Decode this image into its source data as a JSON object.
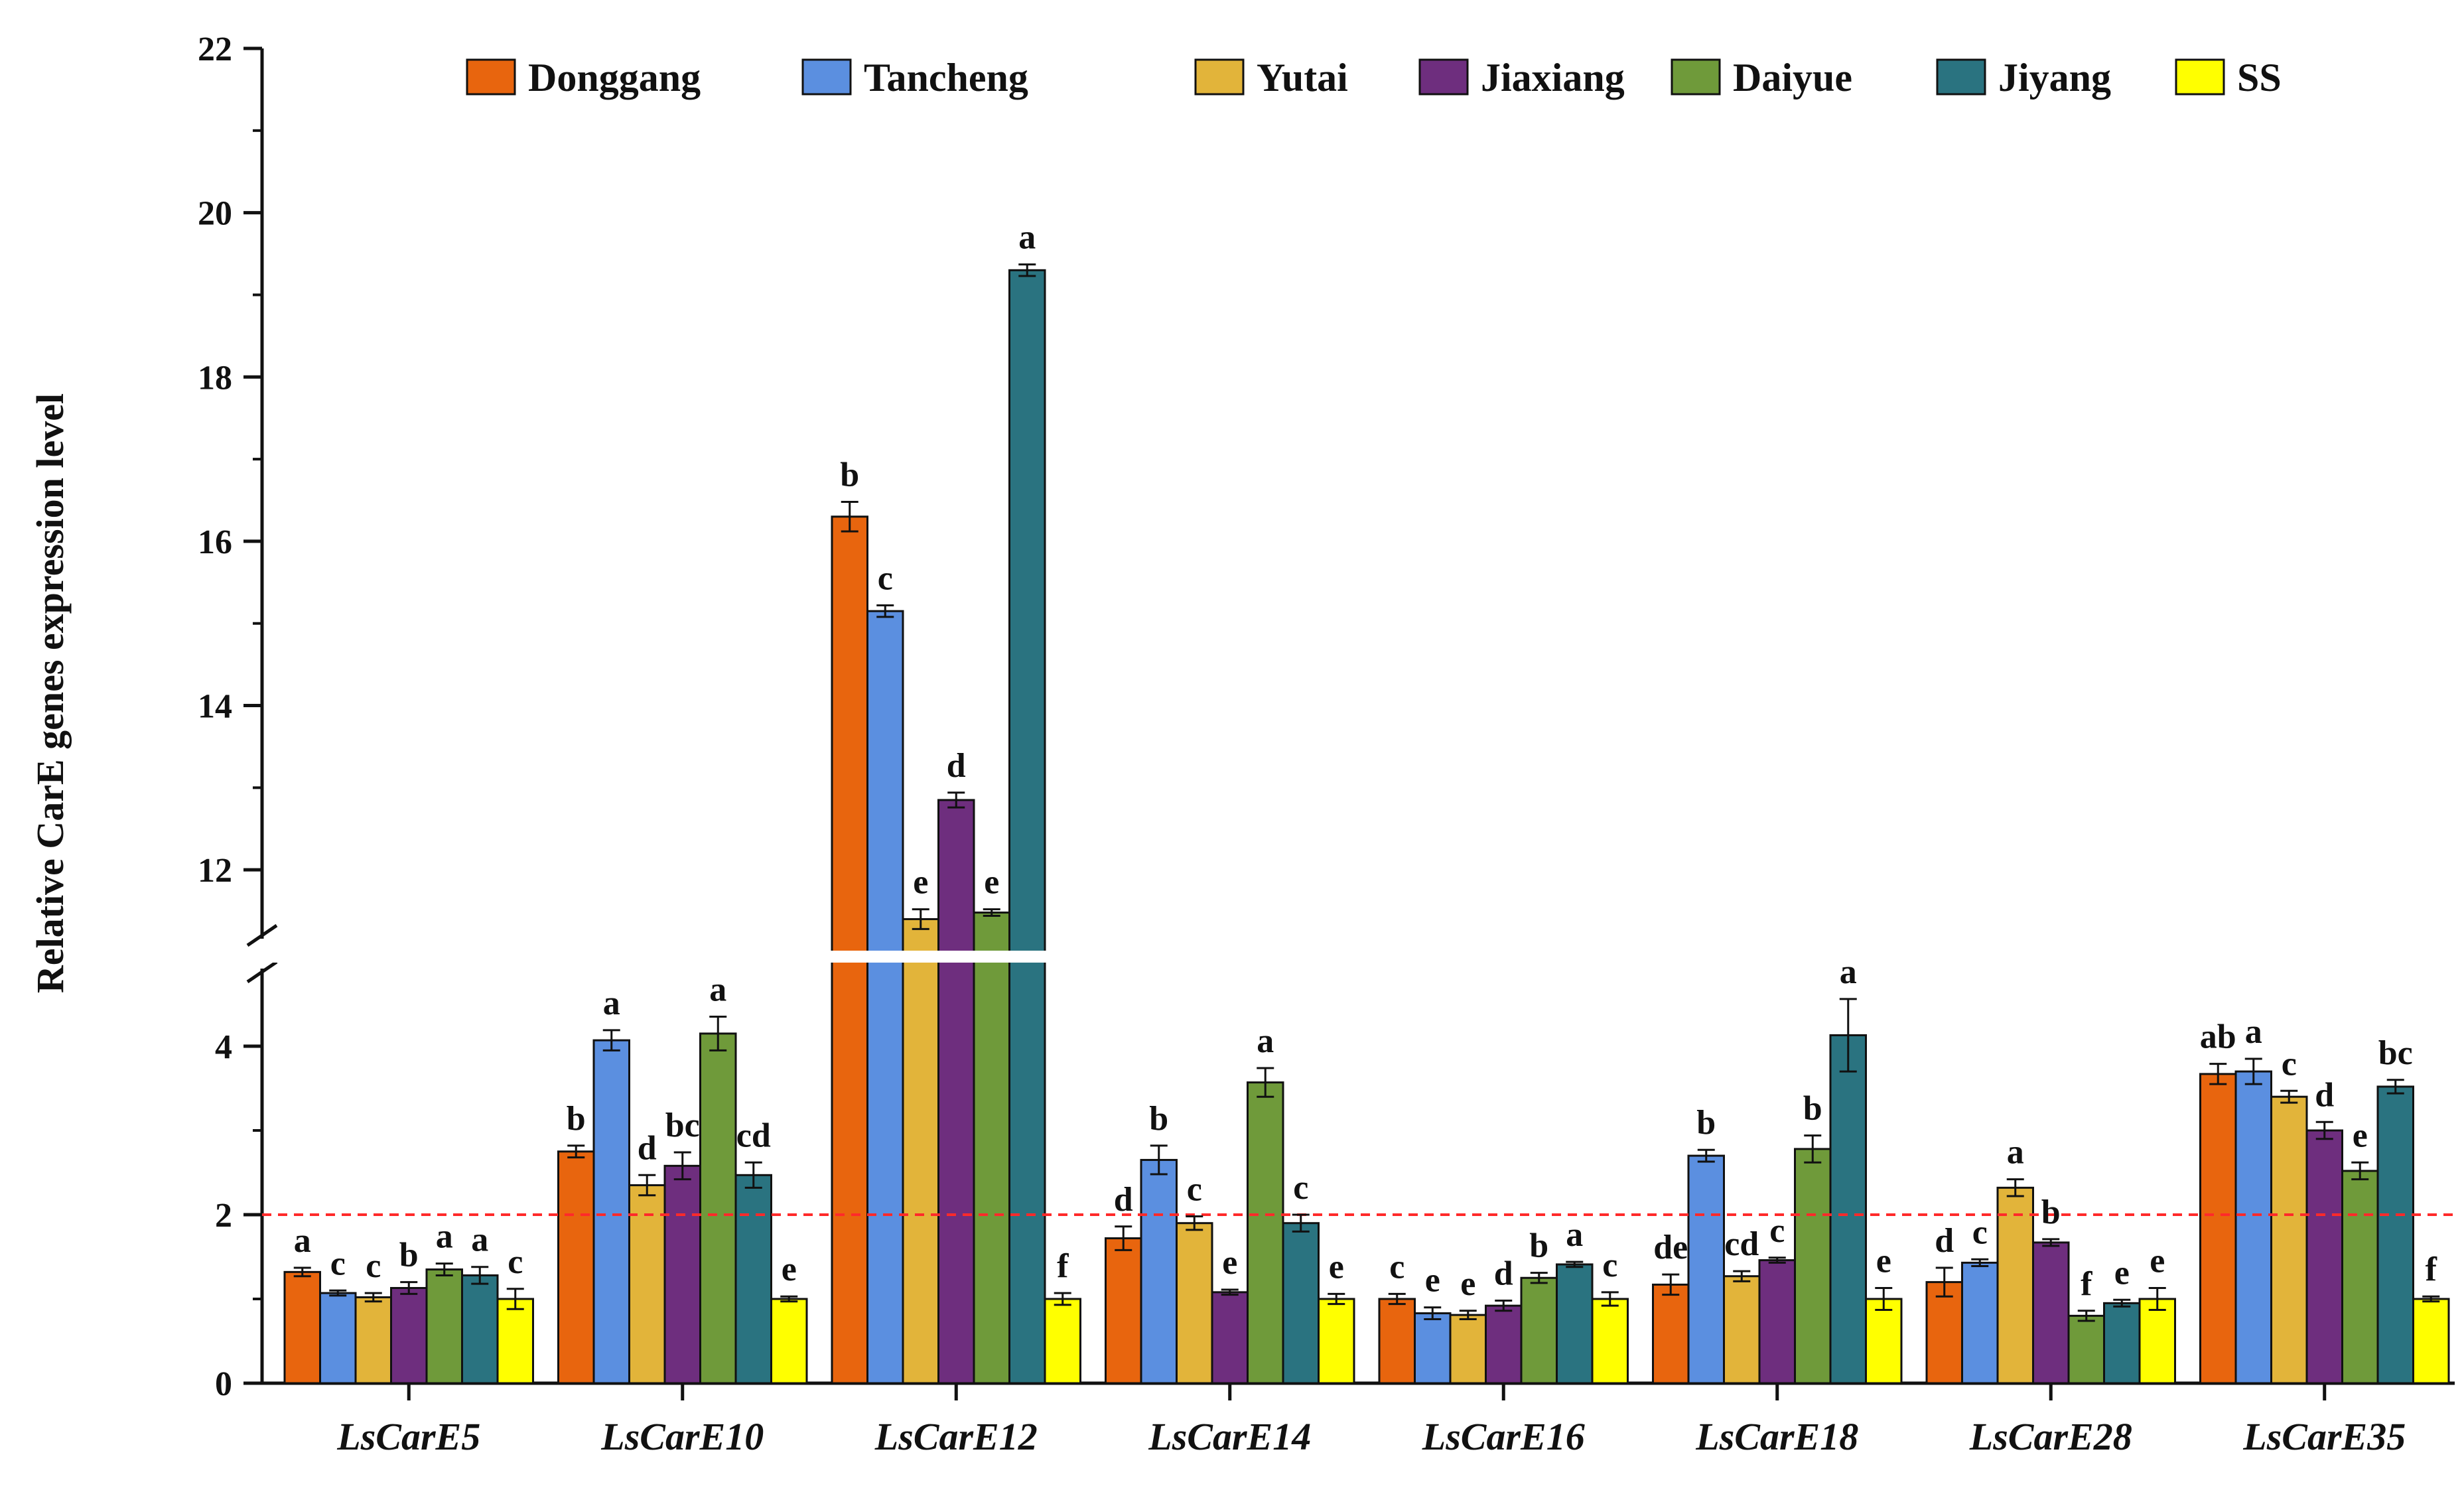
{
  "chart_data": {
    "type": "bar",
    "title": "",
    "xlabel": "",
    "ylabel": "Relative CarE genes expression level",
    "categories": [
      "LsCarE5",
      "LsCarE10",
      "LsCarE12",
      "LsCarE14",
      "LsCarE16",
      "LsCarE18",
      "LsCarE28",
      "LsCarE35"
    ],
    "y_axis_break": {
      "lower_range": [
        0,
        5
      ],
      "upper_range": [
        11,
        22
      ]
    },
    "lower_ticks": [
      "0",
      "2",
      "4"
    ],
    "upper_ticks": [
      "12",
      "14",
      "16",
      "18",
      "20",
      "22"
    ],
    "lower_tick_values": [
      0,
      2,
      4
    ],
    "upper_tick_values": [
      12,
      14,
      16,
      18,
      20,
      22
    ],
    "reference_line": {
      "value": 2,
      "style": "dashed",
      "color": "#ff2a2a"
    },
    "legend_position": "top",
    "series": [
      {
        "name": "Donggang",
        "color": "#e8650e",
        "values": [
          1.32,
          2.75,
          16.3,
          1.72,
          1.0,
          1.17,
          1.2,
          3.67
        ],
        "errors": [
          0.05,
          0.07,
          0.18,
          0.14,
          0.06,
          0.12,
          0.17,
          0.12
        ],
        "sig": [
          "a",
          "b",
          "b",
          "d",
          "c",
          "de",
          "d",
          "ab"
        ]
      },
      {
        "name": "Tancheng",
        "color": "#5b8fe0",
        "values": [
          1.07,
          4.07,
          15.15,
          2.65,
          0.83,
          2.7,
          1.43,
          3.7
        ],
        "errors": [
          0.03,
          0.12,
          0.07,
          0.17,
          0.07,
          0.07,
          0.04,
          0.15
        ],
        "sig": [
          "c",
          "a",
          "c",
          "b",
          "e",
          "b",
          "c",
          "a"
        ]
      },
      {
        "name": "Yutai",
        "color": "#e2b43a",
        "values": [
          1.02,
          2.35,
          11.4,
          1.9,
          0.81,
          1.27,
          2.32,
          3.4
        ],
        "errors": [
          0.05,
          0.12,
          0.12,
          0.08,
          0.05,
          0.06,
          0.1,
          0.07
        ],
        "sig": [
          "c",
          "d",
          "e",
          "c",
          "e",
          "cd",
          "a",
          "c"
        ]
      },
      {
        "name": "Jiaxiang",
        "color": "#6e2e7e",
        "values": [
          1.13,
          2.58,
          12.85,
          1.08,
          0.92,
          1.46,
          1.67,
          3.0
        ],
        "errors": [
          0.07,
          0.16,
          0.09,
          0.03,
          0.06,
          0.03,
          0.04,
          0.1
        ],
        "sig": [
          "b",
          "bc",
          "d",
          "e",
          "d",
          "c",
          "b",
          "d"
        ]
      },
      {
        "name": "Daiyue",
        "color": "#6f9a3a",
        "values": [
          1.35,
          4.15,
          11.48,
          3.57,
          1.25,
          2.78,
          0.8,
          2.52
        ],
        "errors": [
          0.07,
          0.2,
          0.04,
          0.17,
          0.06,
          0.16,
          0.06,
          0.1
        ],
        "sig": [
          "a",
          "a",
          "e",
          "a",
          "b",
          "b",
          "f",
          "e"
        ]
      },
      {
        "name": "Jiyang",
        "color": "#2a7380",
        "values": [
          1.28,
          2.47,
          19.3,
          1.9,
          1.41,
          4.13,
          0.95,
          3.52
        ],
        "errors": [
          0.1,
          0.15,
          0.07,
          0.1,
          0.03,
          0.43,
          0.04,
          0.08
        ],
        "sig": [
          "a",
          "cd",
          "a",
          "c",
          "a",
          "a",
          "e",
          "bc"
        ]
      },
      {
        "name": "SS",
        "color": "#ffff00",
        "values": [
          1.0,
          1.0,
          1.0,
          1.0,
          1.0,
          1.0,
          1.0,
          1.0
        ],
        "errors": [
          0.12,
          0.03,
          0.07,
          0.06,
          0.08,
          0.13,
          0.13,
          0.03
        ],
        "sig": [
          "c",
          "e",
          "f",
          "e",
          "c",
          "e",
          "e",
          "f"
        ]
      }
    ]
  }
}
